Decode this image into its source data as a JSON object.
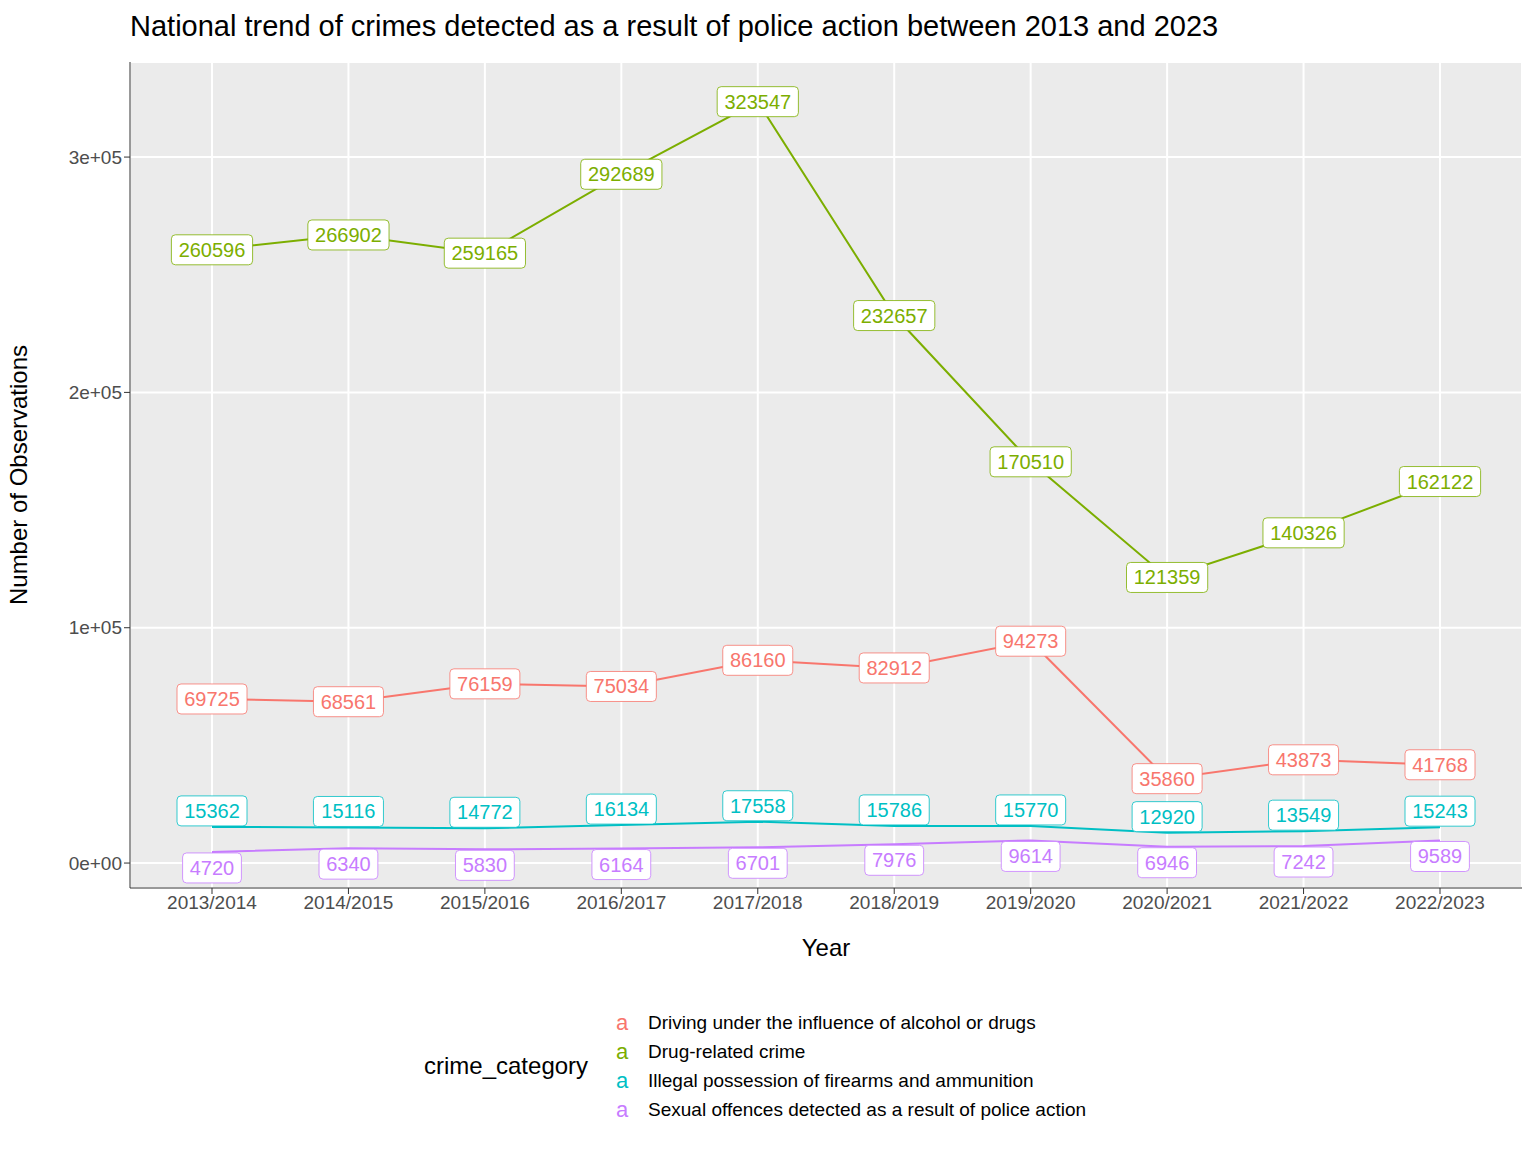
{
  "chart_data": {
    "type": "line",
    "title": "National trend of crimes detected as a result of police action between 2013 and 2023",
    "x_label": "Year",
    "y_label": "Number of Observations",
    "legend_title": "crime_category",
    "categories": [
      "2013/2014",
      "2014/2015",
      "2015/2016",
      "2016/2017",
      "2017/2018",
      "2018/2019",
      "2019/2020",
      "2020/2021",
      "2021/2022",
      "2022/2023"
    ],
    "series": [
      {
        "name": "Driving under the influence of alcohol or drugs",
        "color": "#F8766D",
        "values": [
          69725,
          68561,
          76159,
          75034,
          86160,
          82912,
          94273,
          35860,
          43873,
          41768
        ]
      },
      {
        "name": "Drug-related crime",
        "color": "#7CAE00",
        "values": [
          260596,
          266902,
          259165,
          292689,
          323547,
          232657,
          170510,
          121359,
          140326,
          162122
        ]
      },
      {
        "name": "Illegal possession of firearms and ammunition",
        "color": "#00BFC4",
        "values": [
          15362,
          15116,
          14772,
          16134,
          17558,
          15786,
          15770,
          12920,
          13549,
          15243
        ]
      },
      {
        "name": "Sexual offences detected as a result of police action",
        "color": "#C77CFF",
        "values": [
          4720,
          6340,
          5830,
          6164,
          6701,
          7976,
          9614,
          6946,
          7242,
          9589
        ]
      }
    ],
    "ylim": [
      -10600,
      340400
    ],
    "yticks": [
      {
        "value": 0,
        "label": "0e+00"
      },
      {
        "value": 100000,
        "label": "1e+05"
      },
      {
        "value": 200000,
        "label": "2e+05"
      },
      {
        "value": 300000,
        "label": "3e+05"
      }
    ],
    "grid": true,
    "legend": "bottom",
    "data_labels": true,
    "marker": "none"
  }
}
